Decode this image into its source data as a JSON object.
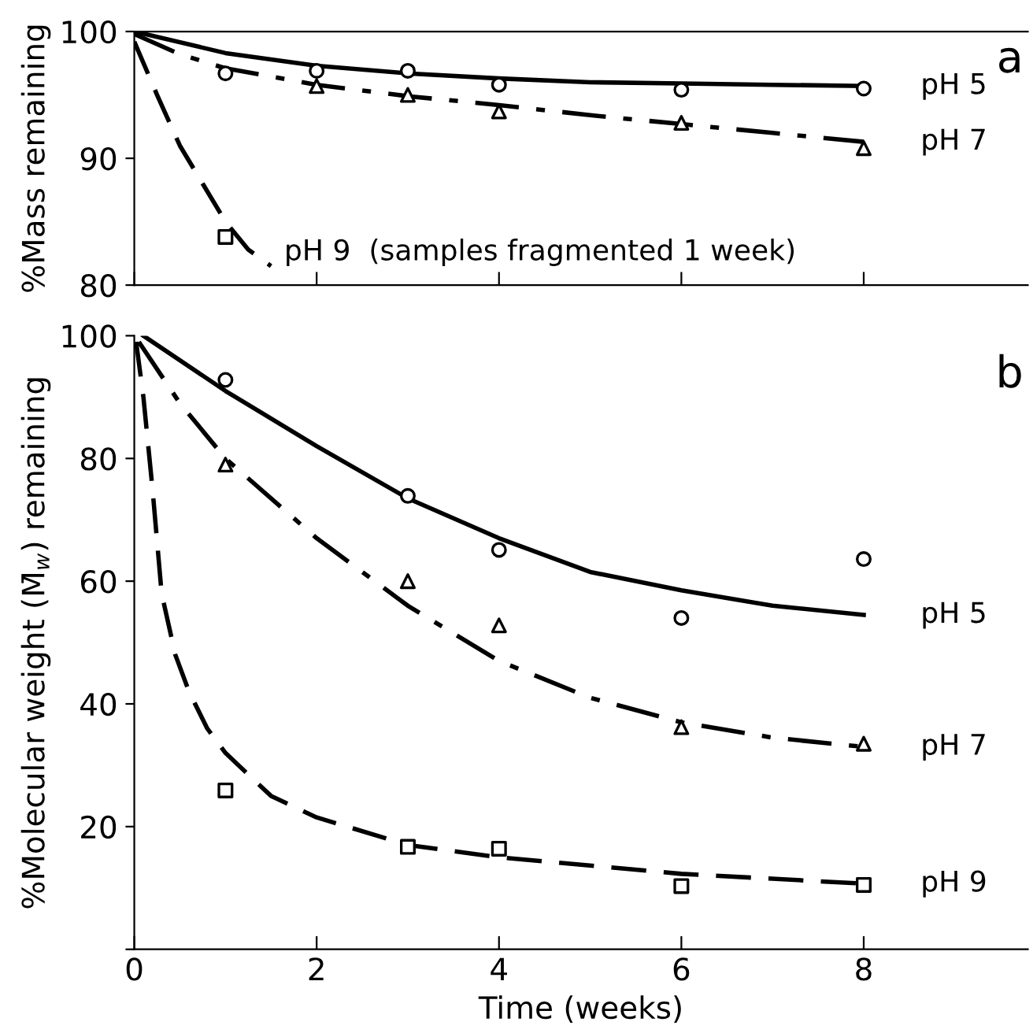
{
  "chart_data": [
    {
      "type": "line",
      "ylabel": "%Mass remaining",
      "xlim": [
        0,
        9.8
      ],
      "ylim": [
        80,
        100
      ],
      "xticks": [
        {
          "value": 0,
          "label": null
        },
        {
          "value": 2,
          "label": null
        },
        {
          "value": 4,
          "label": null
        },
        {
          "value": 6,
          "label": null
        },
        {
          "value": 8,
          "label": null
        }
      ],
      "yticks": [
        80,
        90,
        100
      ],
      "tick_labels": "y",
      "grid": false,
      "legend": false,
      "annotations": [
        "a"
      ],
      "series": [
        {
          "type": "line",
          "name": "pH 5",
          "color": "#000000",
          "line_style": "solid",
          "marker": "none",
          "x": [
            0,
            1,
            2,
            3,
            4,
            5,
            6,
            7,
            8
          ],
          "values": [
            100,
            98.3,
            97.3,
            96.7,
            96.3,
            96.0,
            95.9,
            95.8,
            95.7
          ]
        },
        {
          "type": "scatter",
          "color": "#000000",
          "marker": "circle",
          "x": [
            1,
            2,
            3,
            4,
            6,
            8
          ],
          "values": [
            96.7,
            96.9,
            96.9,
            95.8,
            95.4,
            95.5
          ]
        },
        {
          "type": "line",
          "name": "pH 7",
          "color": "#000000",
          "line_style": "dashdot",
          "marker": "none",
          "x": [
            0,
            0.5,
            1,
            2,
            3,
            4,
            5,
            6,
            7,
            8
          ],
          "values": [
            99.8,
            98.2,
            97.1,
            95.8,
            94.9,
            94.2,
            93.4,
            92.7,
            92.0,
            91.3
          ]
        },
        {
          "type": "scatter",
          "color": "#000000",
          "marker": "triangle",
          "x": [
            2,
            3,
            4,
            6,
            8
          ],
          "values": [
            95.7,
            95.0,
            93.7,
            92.8,
            90.8
          ]
        },
        {
          "type": "line",
          "name": "pH 9  (samples fragmented 1 week)",
          "color": "#000000",
          "line_style": "dashed",
          "marker": "none",
          "x": [
            0,
            0.25,
            0.5,
            0.75,
            1,
            1.25,
            1.5
          ],
          "values": [
            99.2,
            95,
            91,
            88,
            85,
            82.8,
            81.5
          ]
        },
        {
          "type": "scatter",
          "color": "#000000",
          "marker": "square",
          "x": [
            1
          ],
          "values": [
            83.8
          ]
        }
      ]
    },
    {
      "type": "line",
      "ylabel": "%Molecular weight (M̄$_{w}$) remaining",
      "xlabel": "Time (weeks)",
      "xlim": [
        0,
        9.8
      ],
      "ylim": [
        0,
        100
      ],
      "xticks": [
        0,
        2,
        4,
        6,
        8
      ],
      "yticks": [
        {
          "value": 0,
          "label": null
        },
        20,
        40,
        60,
        80,
        100
      ],
      "grid": false,
      "legend": false,
      "annotations": [
        "b"
      ],
      "series": [
        {
          "type": "line",
          "name": "pH 5",
          "color": "#000000",
          "line_style": "solid",
          "marker": "none",
          "x": [
            0.1,
            1,
            2,
            3,
            4,
            5,
            6,
            7,
            8
          ],
          "values": [
            100,
            91,
            82,
            73.5,
            67,
            61.5,
            58.5,
            56,
            54.5
          ]
        },
        {
          "type": "scatter",
          "color": "#000000",
          "marker": "circle",
          "x": [
            1,
            3,
            4,
            6,
            8
          ],
          "values": [
            92.8,
            73.9,
            65.1,
            54.0,
            63.6
          ]
        },
        {
          "type": "line",
          "name": "pH 7",
          "color": "#000000",
          "line_style": "dashdot",
          "marker": "none",
          "x": [
            0.05,
            0.5,
            1,
            2,
            3,
            4,
            5,
            6,
            7,
            8
          ],
          "values": [
            99,
            89,
            80,
            67,
            56,
            47,
            41,
            37,
            34.5,
            33
          ]
        },
        {
          "type": "scatter",
          "color": "#000000",
          "marker": "triangle",
          "x": [
            1,
            3,
            4,
            6,
            8
          ],
          "values": [
            79,
            60,
            52.8,
            36.2,
            33.5
          ]
        },
        {
          "type": "line",
          "name": "pH 9",
          "color": "#000000",
          "line_style": "dashed",
          "marker": "none",
          "x": [
            0.02,
            0.1,
            0.2,
            0.3,
            0.45,
            0.6,
            0.8,
            1,
            1.5,
            2,
            3,
            4,
            6,
            8
          ],
          "values": [
            99,
            90,
            75,
            58,
            48,
            42,
            36,
            32,
            25,
            21.5,
            17,
            15,
            12.3,
            10.7
          ]
        },
        {
          "type": "scatter",
          "color": "#000000",
          "marker": "square",
          "x": [
            1,
            3,
            4,
            6,
            8
          ],
          "values": [
            25.9,
            16.7,
            16.4,
            10.3,
            10.5
          ]
        }
      ]
    }
  ]
}
